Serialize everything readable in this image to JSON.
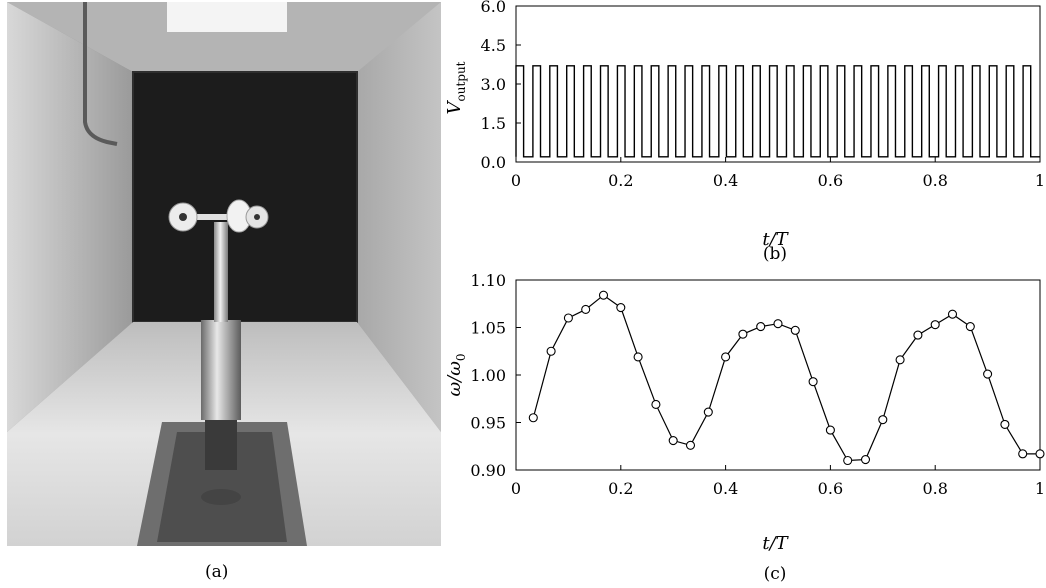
{
  "panels": {
    "a": {
      "label": "(a)"
    },
    "b": {
      "label": "(b)"
    },
    "c": {
      "label": "(c)"
    }
  },
  "chart_data": [
    {
      "id": "b",
      "type": "line",
      "title": "",
      "xlabel": "t/T",
      "ylabel": "V_output",
      "xlim": [
        0,
        1
      ],
      "ylim": [
        0,
        6
      ],
      "xticks": [
        0,
        0.2,
        0.4,
        0.6,
        0.8,
        1
      ],
      "xtick_labels": [
        "0",
        "0.2",
        "0.4",
        "0.6",
        "0.8",
        "1"
      ],
      "yticks": [
        0,
        1.5,
        3,
        4.5,
        6
      ],
      "ytick_labels": [
        "0.0",
        "1.5",
        "3.0",
        "4.5",
        "6.0"
      ],
      "grid": false,
      "signal": {
        "kind": "square",
        "periods": 31,
        "high": 3.7,
        "low": 0.2,
        "duty": 0.55
      }
    },
    {
      "id": "c",
      "type": "line",
      "title": "",
      "xlabel": "t/T",
      "ylabel": "ω/ω0",
      "xlim": [
        0,
        1
      ],
      "ylim": [
        0.9,
        1.1
      ],
      "xticks": [
        0,
        0.2,
        0.4,
        0.6,
        0.8,
        1
      ],
      "xtick_labels": [
        "0",
        "0.2",
        "0.4",
        "0.6",
        "0.8",
        "1"
      ],
      "yticks": [
        0.9,
        0.95,
        1.0,
        1.05,
        1.1
      ],
      "ytick_labels": [
        "0.90",
        "0.95",
        "1.00",
        "1.05",
        "1.10"
      ],
      "grid": false,
      "markers": "open-circle",
      "x": [
        0.033,
        0.067,
        0.1,
        0.133,
        0.167,
        0.2,
        0.233,
        0.267,
        0.3,
        0.333,
        0.367,
        0.4,
        0.433,
        0.467,
        0.5,
        0.533,
        0.567,
        0.6,
        0.633,
        0.667,
        0.7,
        0.733,
        0.767,
        0.8,
        0.833,
        0.867,
        0.9,
        0.933,
        0.967,
        1.0
      ],
      "y": [
        0.955,
        1.025,
        1.06,
        1.069,
        1.084,
        1.071,
        1.019,
        0.969,
        0.931,
        0.926,
        0.961,
        1.019,
        1.043,
        1.051,
        1.054,
        1.047,
        0.993,
        0.942,
        0.91,
        0.911,
        0.953,
        1.016,
        1.042,
        1.053,
        1.064,
        1.051,
        1.001,
        0.948,
        0.917,
        0.917
      ]
    }
  ]
}
